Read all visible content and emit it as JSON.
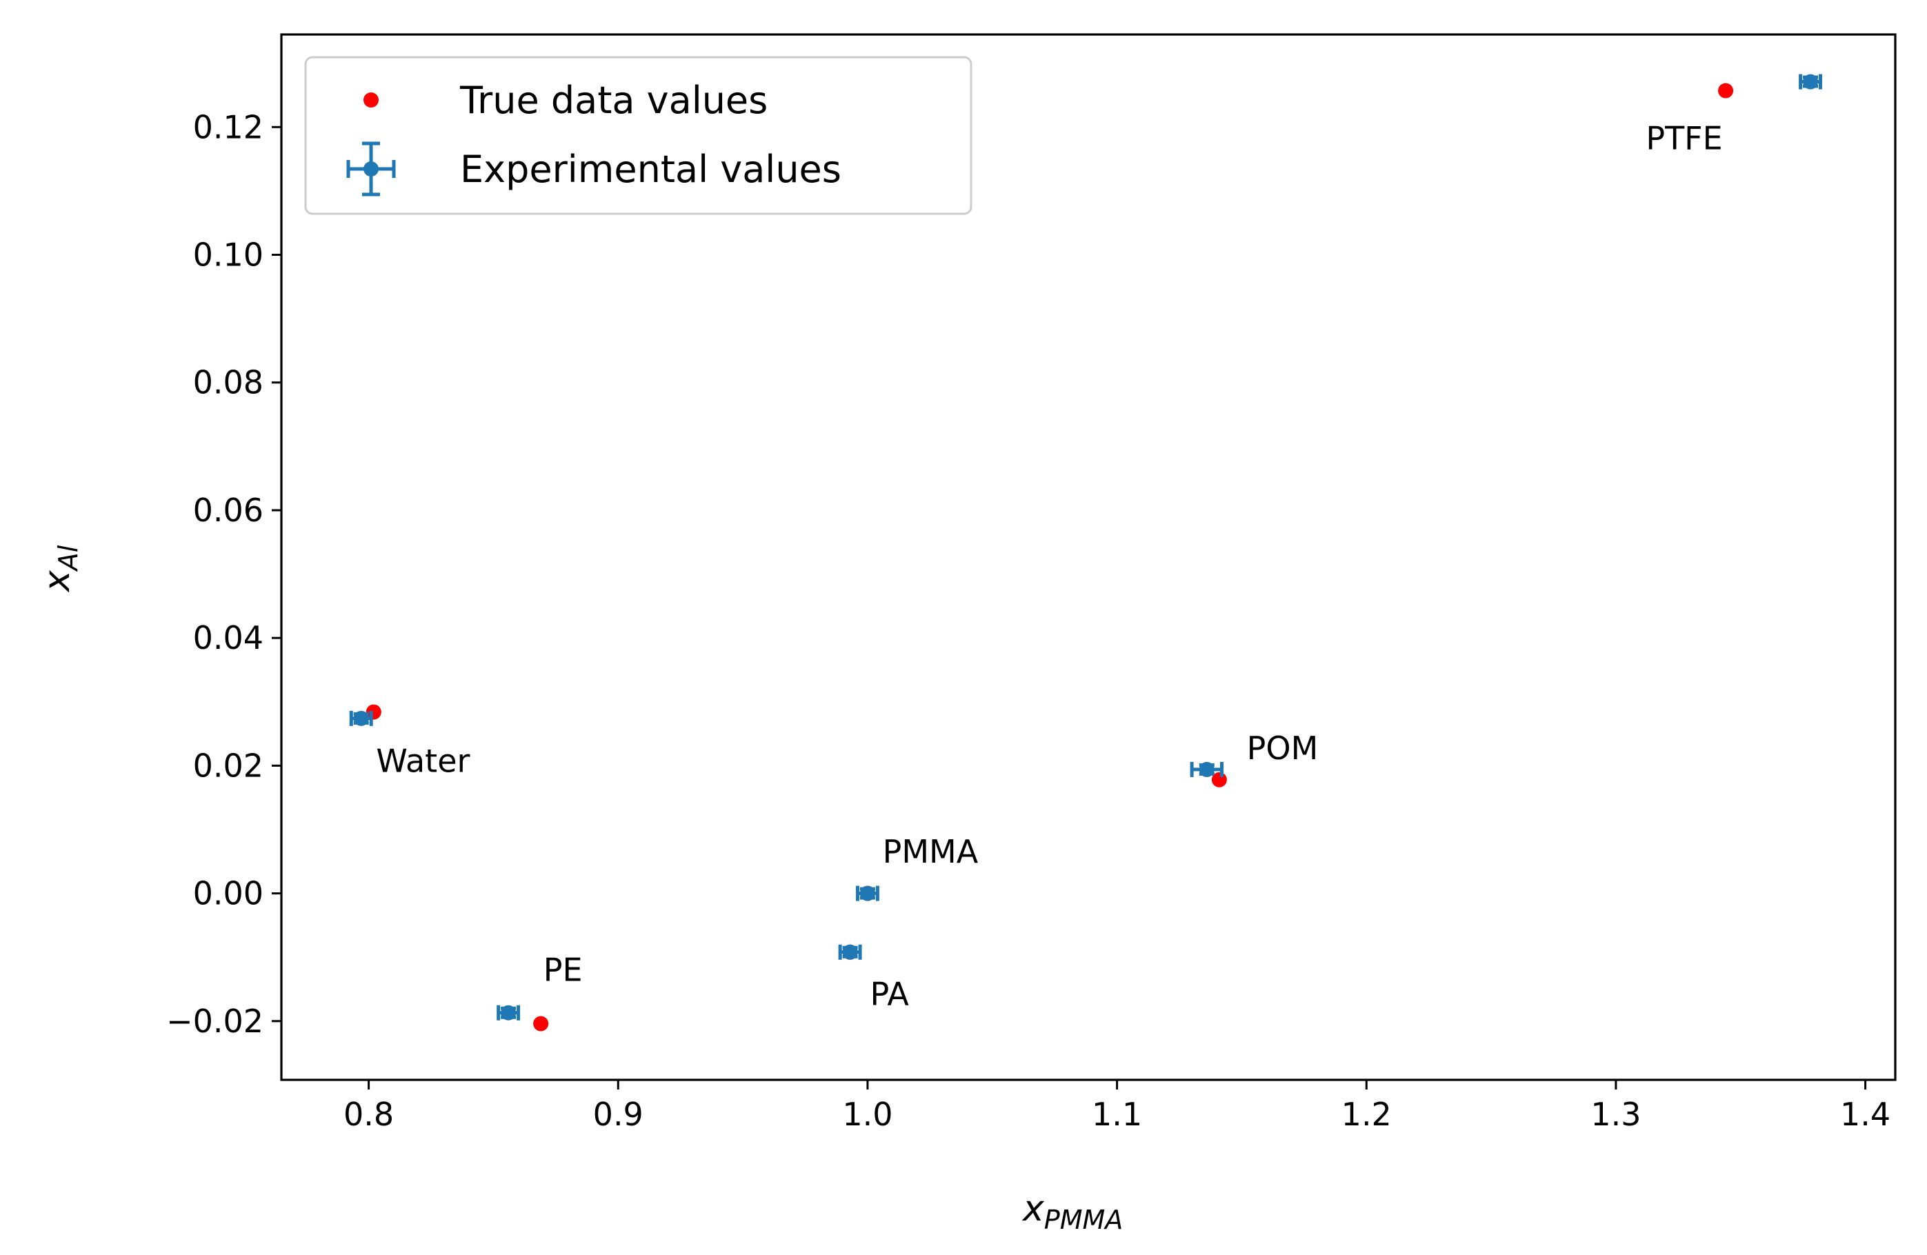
{
  "chart_data": {
    "type": "scatter",
    "title": "",
    "xlabel_main": "x",
    "xlabel_sub": "PMMA",
    "ylabel_main": "x",
    "ylabel_sub": "Al",
    "xlim": [
      0.765,
      1.412
    ],
    "ylim": [
      -0.0292,
      0.1345
    ],
    "x_ticks": [
      0.8,
      0.9,
      1.0,
      1.1,
      1.2,
      1.3,
      1.4
    ],
    "x_tick_labels": [
      "0.8",
      "0.9",
      "1.0",
      "1.1",
      "1.2",
      "1.3",
      "1.4"
    ],
    "y_ticks": [
      -0.02,
      0.0,
      0.02,
      0.04,
      0.06,
      0.08,
      0.1,
      0.12
    ],
    "y_tick_labels": [
      "−0.02",
      "0.00",
      "0.02",
      "0.04",
      "0.06",
      "0.08",
      "0.10",
      "0.12"
    ],
    "grid": false,
    "legend_position": "top-left",
    "legend": [
      "True data values",
      "Experimental values"
    ],
    "series": [
      {
        "name": "True data values",
        "color": "#ff0000",
        "points": [
          {
            "label": "Water",
            "x": 0.802,
            "y": 0.0284
          },
          {
            "label": "PE",
            "x": 0.869,
            "y": -0.0204
          },
          {
            "label": "PA",
            "x": 0.993,
            "y": -0.0092
          },
          {
            "label": "PMMA",
            "x": 1.0,
            "y": 0.0
          },
          {
            "label": "POM",
            "x": 1.141,
            "y": 0.0178
          },
          {
            "label": "PTFE",
            "x": 1.344,
            "y": 0.1257
          }
        ]
      },
      {
        "name": "Experimental values",
        "color": "#1f77b4",
        "points": [
          {
            "label": "Water",
            "x": 0.797,
            "y": 0.0274,
            "xerr": 0.004,
            "yerr": 0.0007
          },
          {
            "label": "PE",
            "x": 0.856,
            "y": -0.0187,
            "xerr": 0.004,
            "yerr": 0.0007
          },
          {
            "label": "PA",
            "x": 0.993,
            "y": -0.0092,
            "xerr": 0.004,
            "yerr": 0.0007
          },
          {
            "label": "PMMA",
            "x": 1.0,
            "y": 0.0,
            "xerr": 0.004,
            "yerr": 0.0007
          },
          {
            "label": "POM",
            "x": 1.136,
            "y": 0.0194,
            "xerr": 0.006,
            "yerr": 0.0007
          },
          {
            "label": "PTFE",
            "x": 1.378,
            "y": 0.1271,
            "xerr": 0.004,
            "yerr": 0.0007
          }
        ]
      }
    ],
    "annotations": [
      {
        "text": "Water",
        "x": 0.803,
        "y": 0.019
      },
      {
        "text": "PE",
        "x": 0.87,
        "y": -0.0137
      },
      {
        "text": "PA",
        "x": 1.001,
        "y": -0.0175
      },
      {
        "text": "PMMA",
        "x": 1.006,
        "y": 0.0048
      },
      {
        "text": "POM",
        "x": 1.152,
        "y": 0.021
      },
      {
        "text": "PTFE",
        "x": 1.312,
        "y": 0.1165
      }
    ]
  }
}
